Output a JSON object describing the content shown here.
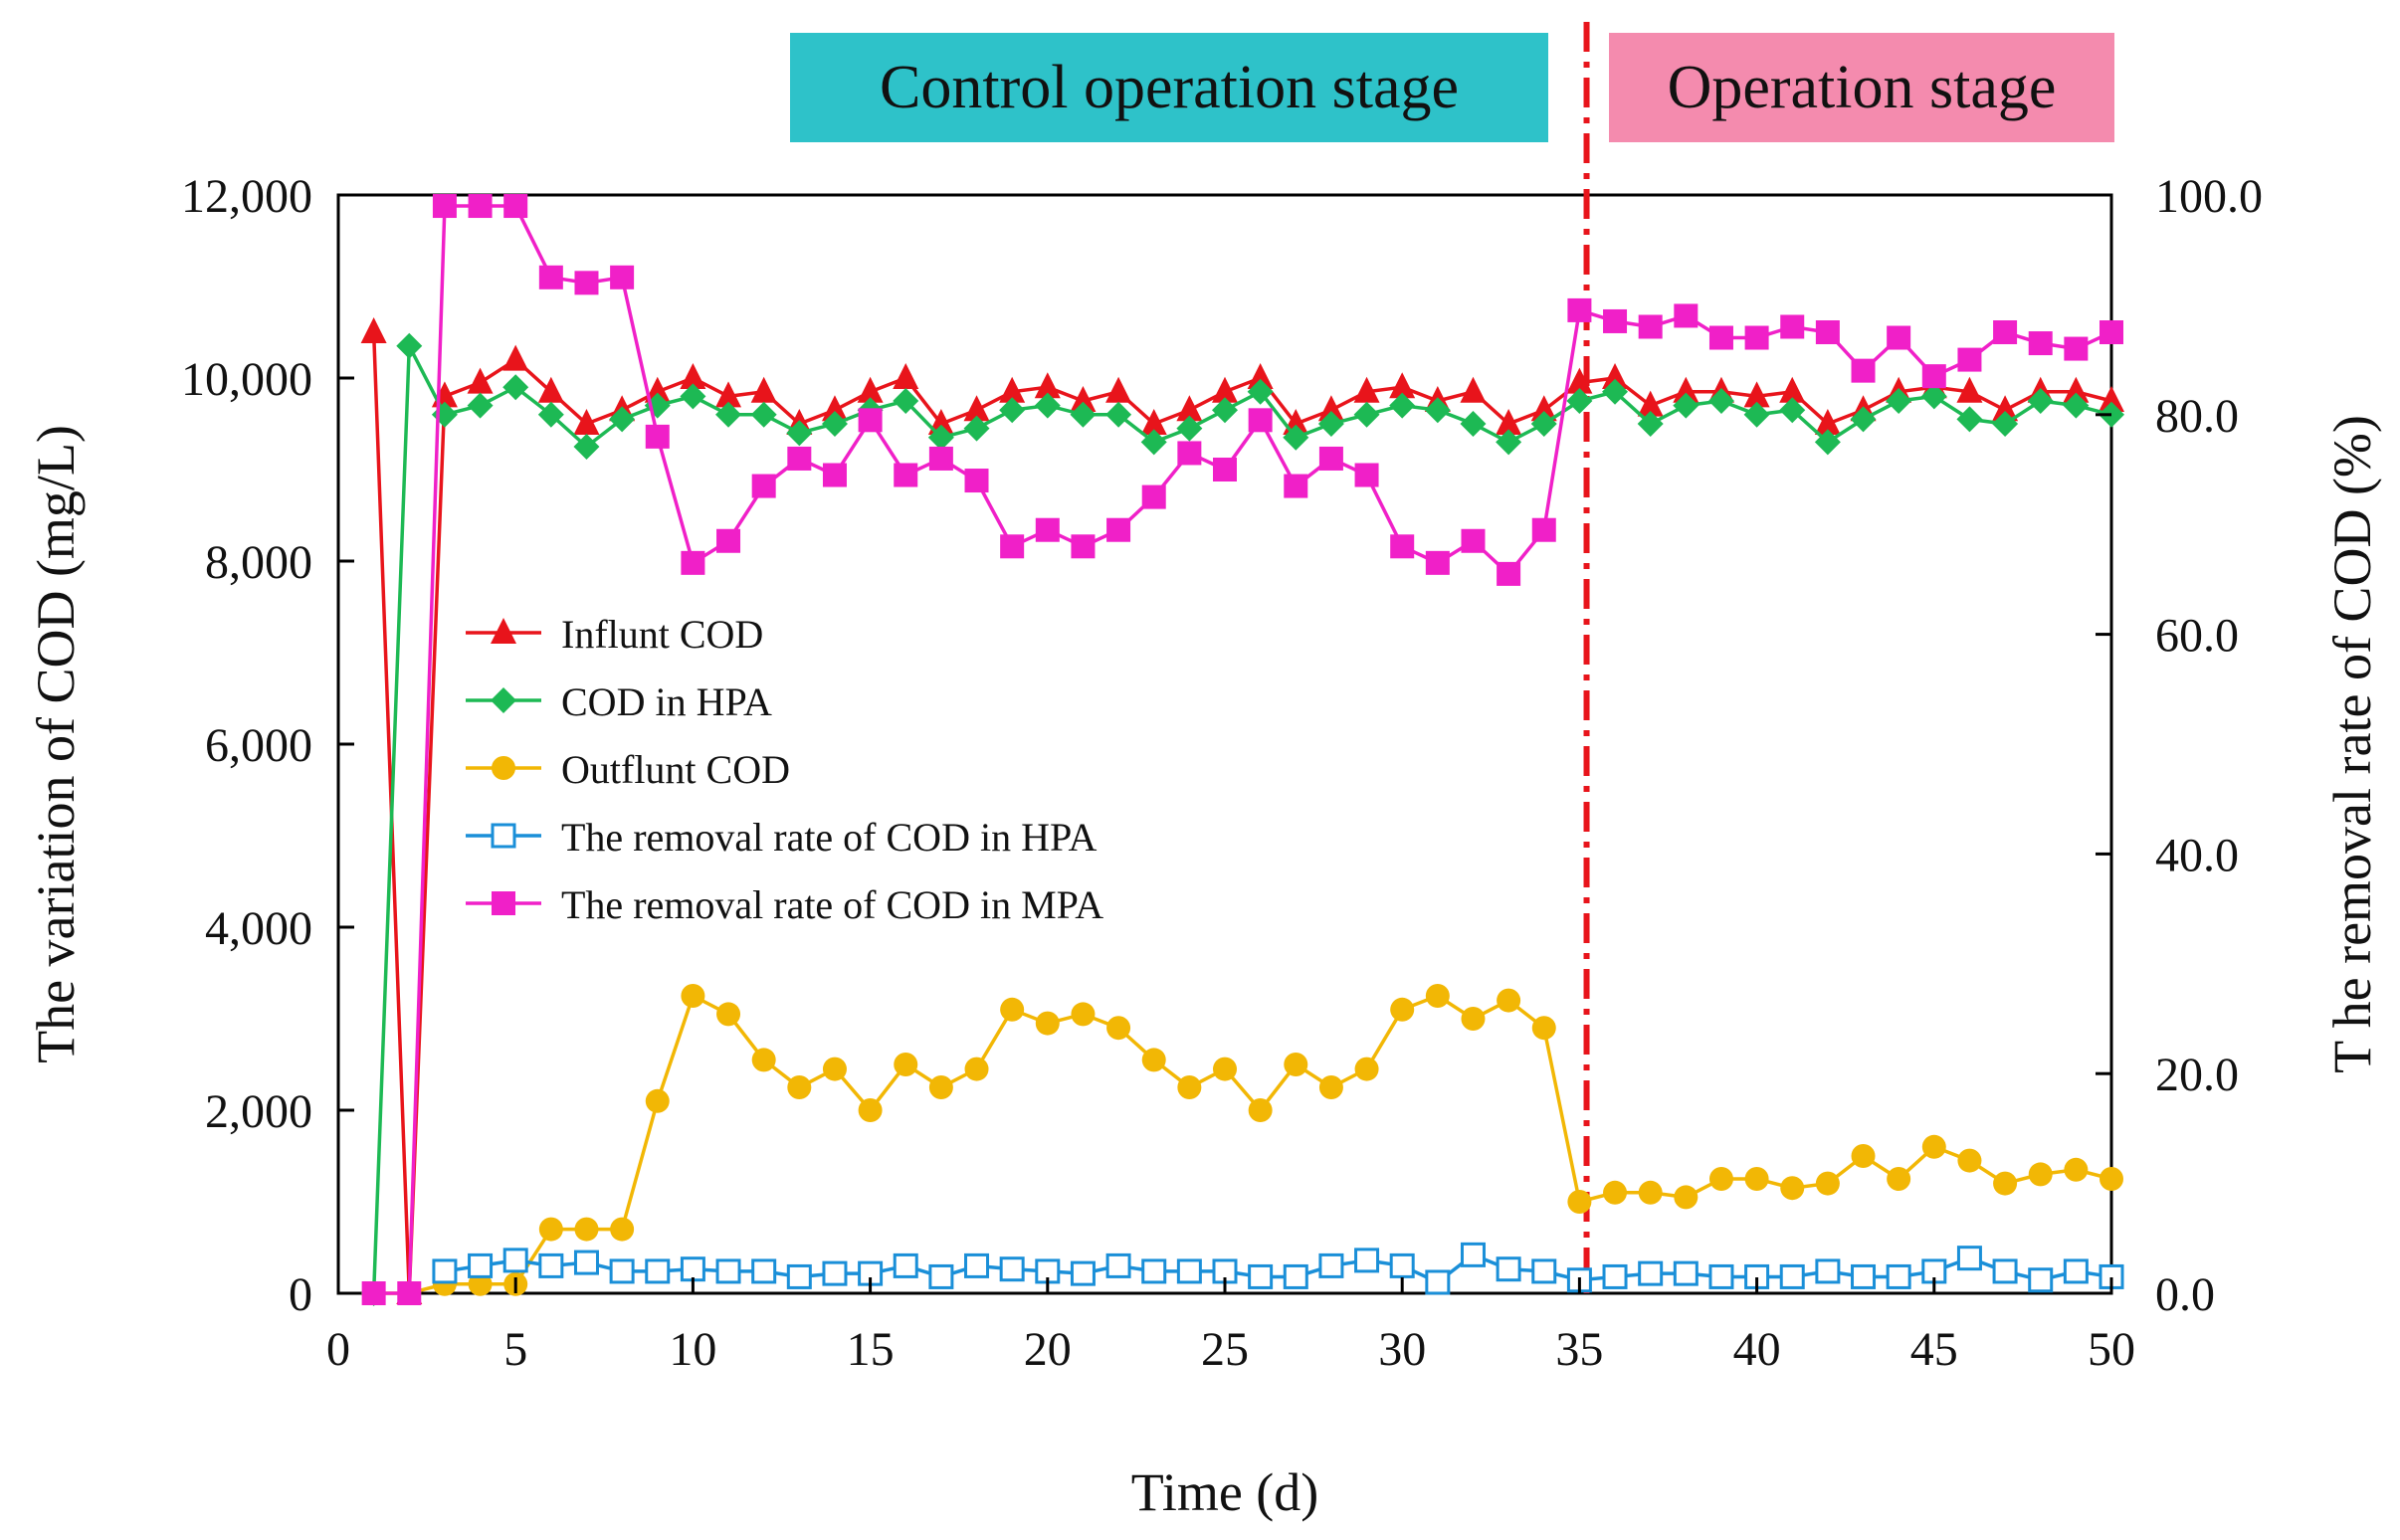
{
  "stages": {
    "control": {
      "label": "Control operation stage",
      "color": "#2EC2C9"
    },
    "operation": {
      "label": "Operation stage",
      "color": "#F48BAE"
    }
  },
  "chart_data": {
    "type": "line",
    "xlabel": "Time (d)",
    "ylabel_left": "The variation of COD (mg/L)",
    "ylabel_right": "T he removal rate of COD (%)",
    "xlim": [
      0,
      50
    ],
    "ylim_left": [
      0,
      12000
    ],
    "ylim_right": [
      0,
      100
    ],
    "x_ticks": [
      0,
      5,
      10,
      15,
      20,
      25,
      30,
      35,
      40,
      45,
      50
    ],
    "x_tick_labels": [
      "0",
      "5",
      "10",
      "15",
      "20",
      "25",
      "30",
      "35",
      "40",
      "45",
      "50"
    ],
    "y_left_ticks": [
      0,
      2000,
      4000,
      6000,
      8000,
      10000,
      12000
    ],
    "y_left_tick_labels": [
      "0",
      "2,000",
      "4,000",
      "6,000",
      "8,000",
      "10,000",
      "12,000"
    ],
    "y_right_ticks": [
      0,
      20,
      40,
      60,
      80,
      100
    ],
    "y_right_tick_labels": [
      "0.0",
      "20.0",
      "40.0",
      "60.0",
      "80.0",
      "100.0"
    ],
    "stage_divider_x": 35.2,
    "legend_position": "center-left",
    "x": [
      1,
      2,
      3,
      4,
      5,
      6,
      7,
      8,
      9,
      10,
      11,
      12,
      13,
      14,
      15,
      16,
      17,
      18,
      19,
      20,
      21,
      22,
      23,
      24,
      25,
      26,
      27,
      28,
      29,
      30,
      31,
      32,
      33,
      34,
      35,
      36,
      37,
      38,
      39,
      40,
      41,
      42,
      43,
      44,
      45,
      46,
      47,
      48,
      49,
      50
    ],
    "series": [
      {
        "name": "Influnt COD",
        "axis": "left",
        "color": "#E8141B",
        "marker": "triangle",
        "values": [
          10500,
          0,
          9800,
          9950,
          10200,
          9850,
          9500,
          9650,
          9850,
          10000,
          9800,
          9850,
          9500,
          9650,
          9850,
          10000,
          9500,
          9650,
          9850,
          9900,
          9750,
          9850,
          9500,
          9650,
          9850,
          10000,
          9500,
          9650,
          9850,
          9900,
          9750,
          9850,
          9500,
          9650,
          9950,
          10000,
          9700,
          9850,
          9850,
          9800,
          9850,
          9500,
          9650,
          9850,
          9900,
          9850,
          9650,
          9850,
          9850,
          9750
        ]
      },
      {
        "name": "COD in HPA",
        "axis": "left",
        "color": "#1DB954",
        "marker": "diamond",
        "values": [
          0,
          10350,
          9600,
          9700,
          9900,
          9600,
          9250,
          9550,
          9700,
          9800,
          9600,
          9600,
          9400,
          9500,
          9650,
          9750,
          9350,
          9450,
          9650,
          9700,
          9600,
          9600,
          9300,
          9450,
          9650,
          9850,
          9350,
          9500,
          9600,
          9700,
          9650,
          9500,
          9300,
          9500,
          9750,
          9850,
          9500,
          9700,
          9750,
          9600,
          9650,
          9300,
          9550,
          9750,
          9800,
          9550,
          9500,
          9750,
          9700,
          9600
        ]
      },
      {
        "name": "Outflunt COD",
        "axis": "left",
        "color": "#F2B705",
        "marker": "circle",
        "values": [
          0,
          0,
          100,
          100,
          100,
          700,
          700,
          700,
          2100,
          3250,
          3050,
          2550,
          2250,
          2450,
          2000,
          2500,
          2250,
          2450,
          3100,
          2950,
          3050,
          2900,
          2550,
          2250,
          2450,
          2000,
          2500,
          2250,
          2450,
          3100,
          3250,
          3000,
          3200,
          2900,
          1000,
          1100,
          1100,
          1050,
          1250,
          1250,
          1150,
          1200,
          1500,
          1250,
          1600,
          1450,
          1200,
          1300,
          1350,
          1250
        ]
      },
      {
        "name": "The removal rate of COD in HPA",
        "axis": "right",
        "color": "#1A8FD8",
        "marker": "open-square",
        "values": [
          null,
          null,
          2.0,
          2.5,
          3.0,
          2.5,
          2.8,
          2.0,
          2.0,
          2.2,
          2.0,
          2.0,
          1.5,
          1.8,
          1.8,
          2.5,
          1.5,
          2.5,
          2.2,
          2.0,
          1.8,
          2.5,
          2.0,
          2.0,
          2.0,
          1.5,
          1.5,
          2.5,
          3.0,
          2.5,
          1.0,
          3.5,
          2.2,
          2.0,
          1.2,
          1.5,
          1.8,
          1.8,
          1.5,
          1.5,
          1.5,
          2.0,
          1.5,
          1.5,
          2.0,
          3.2,
          2.0,
          1.2,
          2.0,
          1.5
        ]
      },
      {
        "name": "The removal rate of COD in MPA",
        "axis": "right",
        "color": "#F020C8",
        "marker": "square",
        "values": [
          0,
          0,
          99,
          99,
          99,
          92.5,
          92,
          92.5,
          78,
          66.5,
          68.5,
          73.5,
          76,
          74.5,
          79.5,
          74.5,
          76,
          74,
          68,
          69.5,
          68,
          69.5,
          72.5,
          76.5,
          75,
          79.5,
          73.5,
          76,
          74.5,
          68,
          66.5,
          68.5,
          65.5,
          69.5,
          89.5,
          88.5,
          88,
          89,
          87,
          87,
          88,
          87.5,
          84,
          87,
          83.5,
          85,
          87.5,
          86.5,
          86,
          87.5
        ]
      }
    ]
  }
}
